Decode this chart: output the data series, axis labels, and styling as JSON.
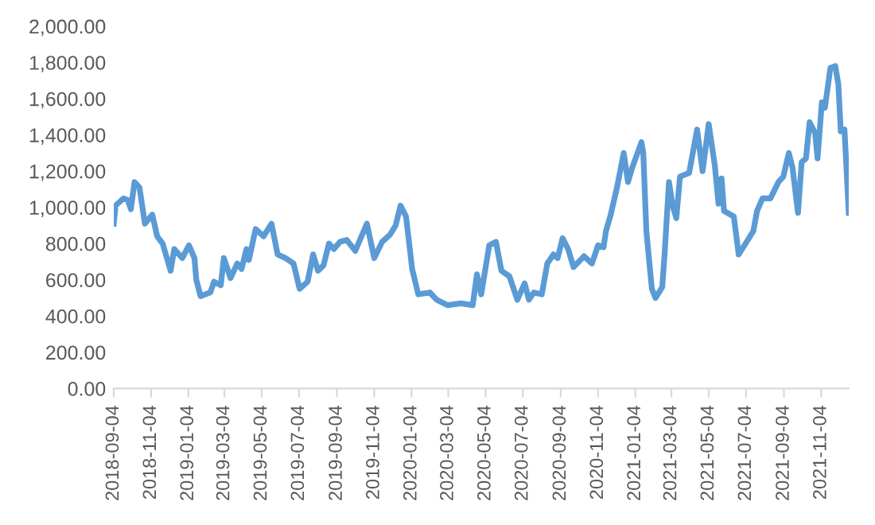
{
  "chart_data": {
    "type": "line",
    "x": [
      "2018-09-04",
      "2018-09-07",
      "2018-09-20",
      "2018-09-27",
      "2018-10-02",
      "2018-10-08",
      "2018-10-16",
      "2018-10-25",
      "2018-11-06",
      "2018-11-14",
      "2018-11-23",
      "2018-12-06",
      "2018-12-12",
      "2018-12-25",
      "2019-01-05",
      "2019-01-14",
      "2019-01-17",
      "2019-01-24",
      "2019-02-09",
      "2019-02-15",
      "2019-02-26",
      "2019-03-03",
      "2019-03-14",
      "2019-03-25",
      "2019-04-01",
      "2019-04-09",
      "2019-04-13",
      "2019-04-24",
      "2019-05-07",
      "2019-05-20",
      "2019-05-30",
      "2019-06-12",
      "2019-06-25",
      "2019-07-05",
      "2019-07-18",
      "2019-07-27",
      "2019-08-04",
      "2019-08-13",
      "2019-08-22",
      "2019-08-30",
      "2019-09-09",
      "2019-09-20",
      "2019-10-04",
      "2019-10-23",
      "2019-11-04",
      "2019-11-17",
      "2019-11-30",
      "2019-12-09",
      "2019-12-17",
      "2019-12-26",
      "2020-01-05",
      "2020-01-15",
      "2020-02-03",
      "2020-02-14",
      "2020-03-03",
      "2020-03-25",
      "2020-04-13",
      "2020-04-20",
      "2020-04-27",
      "2020-05-10",
      "2020-05-21",
      "2020-05-30",
      "2020-06-12",
      "2020-06-25",
      "2020-07-07",
      "2020-07-14",
      "2020-07-22",
      "2020-08-04",
      "2020-08-13",
      "2020-08-23",
      "2020-08-30",
      "2020-09-07",
      "2020-09-16",
      "2020-09-25",
      "2020-10-12",
      "2020-10-25",
      "2020-11-04",
      "2020-11-13",
      "2020-11-17",
      "2020-11-24",
      "2020-12-05",
      "2020-12-16",
      "2020-12-23",
      "2020-12-30",
      "2021-01-14",
      "2021-01-17",
      "2021-01-22",
      "2021-01-31",
      "2021-02-06",
      "2021-02-17",
      "2021-02-21",
      "2021-02-28",
      "2021-03-06",
      "2021-03-12",
      "2021-03-18",
      "2021-04-02",
      "2021-04-15",
      "2021-04-24",
      "2021-05-04",
      "2021-05-14",
      "2021-05-20",
      "2021-05-25",
      "2021-05-29",
      "2021-06-14",
      "2021-06-22",
      "2021-07-07",
      "2021-07-16",
      "2021-07-22",
      "2021-07-31",
      "2021-08-13",
      "2021-08-26",
      "2021-09-03",
      "2021-09-12",
      "2021-09-18",
      "2021-09-27",
      "2021-10-03",
      "2021-10-10",
      "2021-10-16",
      "2021-10-25",
      "2021-10-29",
      "2021-11-05",
      "2021-11-10",
      "2021-11-19",
      "2021-11-27",
      "2021-12-02",
      "2021-12-06",
      "2021-12-12",
      "2021-12-19"
    ],
    "series": [
      {
        "color": "#5b9bd5",
        "values": [
          910,
          1010,
          1050,
          1040,
          990,
          1140,
          1110,
          910,
          960,
          840,
          800,
          650,
          770,
          720,
          790,
          720,
          600,
          510,
          530,
          590,
          570,
          720,
          610,
          690,
          660,
          770,
          710,
          880,
          840,
          910,
          740,
          720,
          690,
          550,
          590,
          740,
          650,
          680,
          800,
          770,
          810,
          820,
          760,
          910,
          720,
          810,
          850,
          900,
          1010,
          950,
          660,
          520,
          530,
          490,
          460,
          470,
          460,
          630,
          520,
          790,
          810,
          650,
          620,
          490,
          580,
          490,
          530,
          520,
          690,
          740,
          720,
          830,
          770,
          670,
          730,
          690,
          790,
          780,
          870,
          950,
          1110,
          1300,
          1140,
          1220,
          1360,
          1300,
          870,
          550,
          500,
          560,
          750,
          1140,
          1010,
          940,
          1170,
          1190,
          1430,
          1200,
          1460,
          1230,
          1020,
          1160,
          980,
          950,
          740,
          820,
          870,
          980,
          1050,
          1050,
          1140,
          1170,
          1300,
          1220,
          970,
          1250,
          1270,
          1470,
          1410,
          1270,
          1580,
          1550,
          1770,
          1780,
          1680,
          1420,
          1430,
          970
        ]
      }
    ],
    "xlim": [
      "2018-09-04",
      "2021-12-19"
    ],
    "xticks": [
      "2018-09-04",
      "2018-11-04",
      "2019-01-04",
      "2019-03-04",
      "2019-05-04",
      "2019-07-04",
      "2019-09-04",
      "2019-11-04",
      "2020-01-04",
      "2020-03-04",
      "2020-05-04",
      "2020-07-04",
      "2020-09-04",
      "2020-11-04",
      "2021-01-04",
      "2021-03-04",
      "2021-05-04",
      "2021-07-04",
      "2021-09-04",
      "2021-11-04"
    ],
    "ylim": [
      0,
      2000
    ],
    "yticks": [
      {
        "value": 0,
        "label": "0.00"
      },
      {
        "value": 200,
        "label": "200.00"
      },
      {
        "value": 400,
        "label": "400.00"
      },
      {
        "value": 600,
        "label": "600.00"
      },
      {
        "value": 800,
        "label": "800.00"
      },
      {
        "value": 1000,
        "label": "1,000.00"
      },
      {
        "value": 1200,
        "label": "1,200.00"
      },
      {
        "value": 1400,
        "label": "1,400.00"
      },
      {
        "value": 1600,
        "label": "1,600.00"
      },
      {
        "value": 1800,
        "label": "1,800.00"
      },
      {
        "value": 2000,
        "label": "2,000.00"
      }
    ],
    "grid": false,
    "marker": "none",
    "line_style": "solid"
  }
}
